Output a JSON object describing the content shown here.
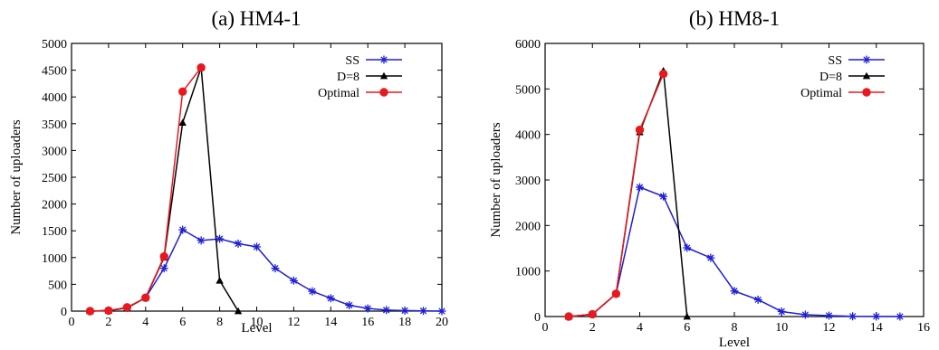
{
  "chart_data": [
    {
      "type": "line",
      "title": "(a) HM4-1",
      "xlabel": "Level",
      "ylabel": "Number of uploaders",
      "xlim": [
        0,
        20
      ],
      "ylim": [
        0,
        5000
      ],
      "xticks": [
        0,
        2,
        4,
        6,
        8,
        10,
        12,
        14,
        16,
        18,
        20
      ],
      "yticks": [
        0,
        500,
        1000,
        1500,
        2000,
        2500,
        3000,
        3500,
        4000,
        4500,
        5000
      ],
      "grid": false,
      "legend": "top-right",
      "series": [
        {
          "name": "SS",
          "color": "#1f1fd6",
          "marker": "star",
          "x": [
            1,
            2,
            3,
            4,
            5,
            6,
            7,
            8,
            9,
            10,
            11,
            12,
            13,
            14,
            15,
            16,
            17,
            18,
            19,
            20
          ],
          "y": [
            0,
            10,
            60,
            250,
            800,
            1520,
            1320,
            1350,
            1260,
            1200,
            800,
            570,
            370,
            240,
            110,
            50,
            20,
            10,
            5,
            0
          ]
        },
        {
          "name": "D=8",
          "color": "#000000",
          "marker": "triangle",
          "x": [
            1,
            2,
            3,
            4,
            5,
            6,
            7,
            8,
            9
          ],
          "y": [
            0,
            10,
            60,
            250,
            1000,
            3520,
            4550,
            570,
            0
          ]
        },
        {
          "name": "Optimal",
          "color": "#e8191e",
          "marker": "circle",
          "x": [
            1,
            2,
            3,
            4,
            5,
            6,
            7
          ],
          "y": [
            0,
            10,
            70,
            250,
            1020,
            4100,
            4550
          ]
        }
      ]
    },
    {
      "type": "line",
      "title": "(b) HM8-1",
      "xlabel": "Level",
      "ylabel": "Number of uploaders",
      "xlim": [
        0,
        16
      ],
      "ylim": [
        0,
        6000
      ],
      "xticks": [
        0,
        2,
        4,
        6,
        8,
        10,
        12,
        14,
        16
      ],
      "yticks": [
        0,
        1000,
        2000,
        3000,
        4000,
        5000,
        6000
      ],
      "grid": false,
      "legend": "top-right",
      "series": [
        {
          "name": "SS",
          "color": "#1f1fd6",
          "marker": "star",
          "x": [
            1,
            2,
            3,
            4,
            5,
            6,
            7,
            8,
            9,
            10,
            11,
            12,
            13,
            14,
            15
          ],
          "y": [
            0,
            50,
            500,
            2840,
            2640,
            1510,
            1290,
            560,
            370,
            110,
            40,
            20,
            5,
            2,
            0
          ]
        },
        {
          "name": "D=8",
          "color": "#000000",
          "marker": "triangle",
          "x": [
            1,
            2,
            3,
            4,
            5,
            6
          ],
          "y": [
            0,
            50,
            500,
            4050,
            5400,
            0
          ]
        },
        {
          "name": "Optimal",
          "color": "#e8191e",
          "marker": "circle",
          "x": [
            1,
            2,
            3,
            4,
            5
          ],
          "y": [
            0,
            50,
            500,
            4100,
            5330
          ]
        }
      ]
    }
  ]
}
